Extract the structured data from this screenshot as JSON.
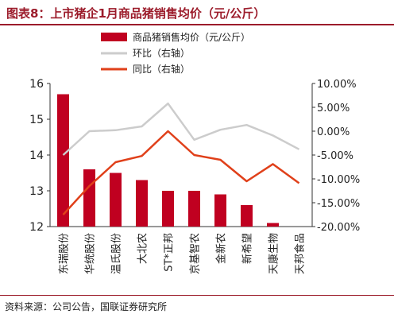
{
  "header": {
    "title": "图表8：上市猪企1月商品猪销售均价（元/公斤）"
  },
  "source": "资料来源：公司公告，国联证券研究所",
  "colors": {
    "bar": "#c00020",
    "yoy": "#e0401a",
    "mom": "#cccccc",
    "accent": "#9c1c2b"
  },
  "chart_data": {
    "type": "bar",
    "title": "图表8：上市猪企1月商品猪销售均价（元/公斤）",
    "categories": [
      "东瑞股份",
      "华统股份",
      "温氏股份",
      "大北农",
      "ST*正邦",
      "京基智农",
      "金新农",
      "新希望",
      "天康生物",
      "天邦食品"
    ],
    "series": [
      {
        "name": "商品猪销售均价（元/公斤）",
        "type": "bar",
        "axis": "left",
        "values": [
          15.7,
          13.6,
          13.5,
          13.3,
          13.0,
          13.0,
          12.9,
          12.6,
          12.1,
          11.8
        ]
      },
      {
        "name": "环比（右轴）",
        "type": "line",
        "axis": "right",
        "values": [
          -5.0,
          0.0,
          0.2,
          1.0,
          5.8,
          -1.8,
          0.3,
          1.3,
          -0.9,
          -3.8
        ]
      },
      {
        "name": "同比（右轴）",
        "type": "line",
        "axis": "right",
        "values": [
          -17.5,
          -11.5,
          -6.5,
          -5.2,
          0.0,
          -5.0,
          -6.0,
          -10.5,
          -6.9,
          -10.9
        ]
      }
    ],
    "left_axis": {
      "min": 12,
      "max": 16,
      "ticks": [
        "12",
        "13",
        "14",
        "15",
        "16"
      ],
      "tick_values": [
        12,
        13,
        14,
        15,
        16
      ]
    },
    "right_axis": {
      "min": -20,
      "max": 10,
      "ticks": [
        "-20.00%",
        "-15.00%",
        "-10.00%",
        "-5.00%",
        "0.00%",
        "5.00%",
        "10.00%"
      ],
      "tick_values": [
        -20,
        -15,
        -10,
        -5,
        0,
        5,
        10
      ]
    },
    "legend": [
      "商品猪销售均价（元/公斤）",
      "环比（右轴）",
      "同比（右轴）"
    ],
    "legend_position": "top",
    "grid": false
  }
}
